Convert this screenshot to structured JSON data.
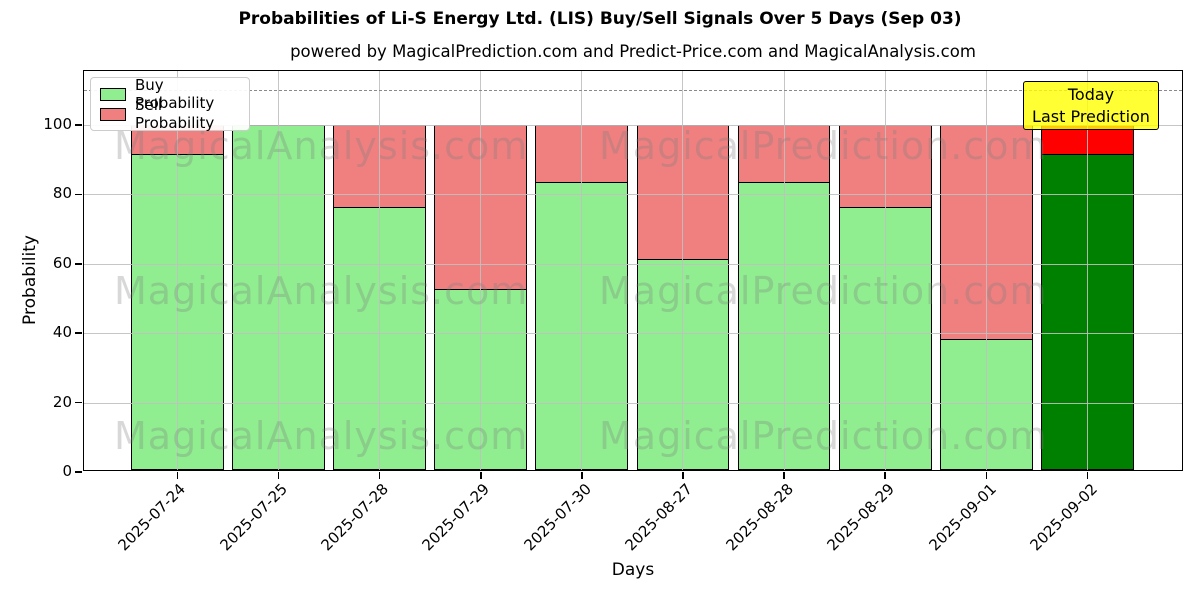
{
  "title": "Probabilities of Li-S Energy Ltd. (LIS) Buy/Sell Signals Over 5 Days (Sep 03)",
  "subtitle": "powered by MagicalPrediction.com and Predict-Price.com and MagicalAnalysis.com",
  "axes": {
    "x_label": "Days",
    "y_label": "Probability",
    "y_ticks": [
      0,
      20,
      40,
      60,
      80,
      100
    ],
    "ylim": [
      0,
      115.6
    ],
    "threshold_line_y": 110
  },
  "legend": {
    "items": [
      {
        "label": "Buy Probability",
        "color": "#90ee90"
      },
      {
        "label": "Sell Probability",
        "color": "#f08080"
      }
    ]
  },
  "annotation": {
    "line1": "Today",
    "line2": "Last Prediction",
    "bg_color": "#ffff00"
  },
  "watermarks": {
    "left_text": "MagicalAnalysis.com",
    "right_text": "MagicalPrediction.com"
  },
  "chart_data": {
    "type": "bar",
    "stacked": true,
    "title": "Probabilities of Li-S Energy Ltd. (LIS) Buy/Sell Signals Over 5 Days (Sep 03)",
    "xlabel": "Days",
    "ylabel": "Probability",
    "ylim": [
      0,
      115.6
    ],
    "grid": true,
    "legend_position": "upper left",
    "categories": [
      "2025-07-24",
      "2025-07-25",
      "2025-07-28",
      "2025-07-29",
      "2025-07-30",
      "2025-08-27",
      "2025-08-28",
      "2025-08-29",
      "2025-09-01",
      "2025-09-02"
    ],
    "series": [
      {
        "name": "Buy Probability",
        "color": "#90ee90",
        "values": [
          91.5,
          100,
          76.2,
          52.4,
          83.3,
          61,
          83.3,
          76.2,
          38.1,
          91.5
        ]
      },
      {
        "name": "Sell Probability",
        "color": "#f08080",
        "values": [
          8.5,
          0,
          23.8,
          47.6,
          16.7,
          39,
          16.7,
          23.8,
          61.9,
          8.5
        ]
      }
    ],
    "today_bar": {
      "index": 9,
      "buy_color": "#008000",
      "sell_color": "#ff0000"
    },
    "edge_color": "#000000"
  }
}
